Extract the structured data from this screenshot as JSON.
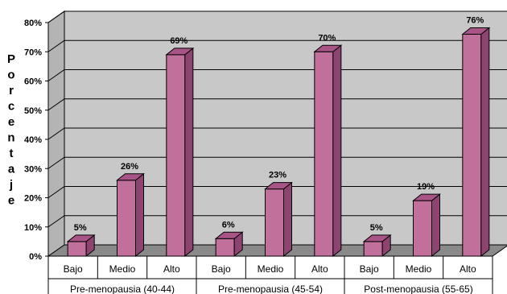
{
  "chart_data": {
    "type": "bar",
    "ylabel": "Porcentaje",
    "ylim": [
      0,
      80
    ],
    "yticks": [
      "0%",
      "10%",
      "20%",
      "30%",
      "40%",
      "50%",
      "60%",
      "70%",
      "80%"
    ],
    "groups": [
      {
        "name": "Pre-menopausia (40-44)",
        "categories": [
          "Bajo",
          "Medio",
          "Alto"
        ],
        "values": [
          5,
          26,
          69
        ],
        "labels": [
          "5%",
          "26%",
          "69%"
        ]
      },
      {
        "name": "Pre-menopausia (45-54)",
        "categories": [
          "Bajo",
          "Medio",
          "Alto"
        ],
        "values": [
          6,
          23,
          70
        ],
        "labels": [
          "6%",
          "23%",
          "70%"
        ]
      },
      {
        "name": "Post-menopausia (55-65)",
        "categories": [
          "Bajo",
          "Medio",
          "Alto"
        ],
        "values": [
          5,
          19,
          76
        ],
        "labels": [
          "5%",
          "19%",
          "76%"
        ]
      }
    ],
    "grid": true,
    "colors": {
      "bar_front": "#C0709A",
      "bar_side": "#8E4470",
      "bar_top": "#A85486",
      "wall": "#C8C8C8",
      "floor": "#8A8A8A"
    }
  }
}
